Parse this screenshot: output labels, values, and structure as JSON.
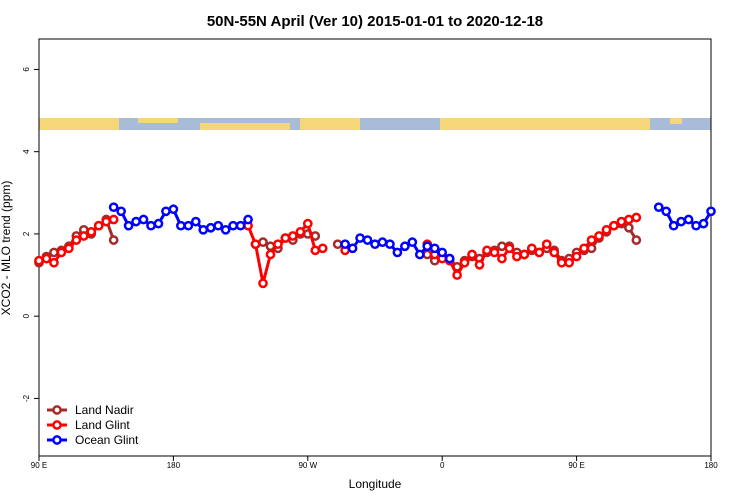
{
  "chart_data": {
    "type": "line",
    "title": "50N-55N April (Ver 10)   2015-01-01 to 2020-12-18",
    "x_label": "Longitude",
    "y_label": "XCO2 - MLO trend (ppm)",
    "xlim": [
      90,
      540
    ],
    "ylim": [
      -3.4,
      6.74
    ],
    "xticks": [
      90,
      180,
      {
        "value": 270,
        "label": "90 W"
      },
      {
        "value": 360,
        "label": "0"
      },
      {
        "value": 450,
        "label": "90 E"
      },
      {
        "value": 540,
        "label": "180"
      }
    ],
    "xtick_first_label": "90 E",
    "yticks": [
      -2,
      0,
      2,
      4,
      6
    ],
    "legend": "bottomleft",
    "series": [
      {
        "name": "Land Nadir",
        "color": "#a52a2a",
        "x": [
          90,
          95,
          100,
          105,
          110,
          115,
          120,
          125,
          130,
          135,
          140,
          185,
          235,
          240,
          245,
          250,
          255,
          260,
          265,
          270,
          275,
          282,
          290,
          300,
          350,
          355,
          360,
          365,
          370,
          375,
          380,
          385,
          390,
          395,
          400,
          405,
          410,
          415,
          420,
          425,
          430,
          435,
          440,
          445,
          450,
          455,
          460,
          465,
          470,
          475,
          480,
          485,
          490
        ],
        "values": [
          1.3,
          1.45,
          1.55,
          1.6,
          1.7,
          1.95,
          2.1,
          2.0,
          2.2,
          2.35,
          1.85,
          null,
          1.75,
          1.8,
          1.7,
          1.65,
          1.9,
          1.85,
          2.0,
          2.0,
          1.95,
          null,
          1.75,
          null,
          1.5,
          1.35,
          1.45,
          1.4,
          1.2,
          1.35,
          1.45,
          1.4,
          1.55,
          1.6,
          1.7,
          1.7,
          1.55,
          1.5,
          1.6,
          1.55,
          1.65,
          1.6,
          1.35,
          1.4,
          1.55,
          1.6,
          1.65,
          1.9,
          2.05,
          2.2,
          2.25,
          2.15,
          1.85
        ]
      },
      {
        "name": "Land Glint",
        "color": "#ff0000",
        "x": [
          90,
          95,
          100,
          105,
          110,
          115,
          120,
          125,
          130,
          135,
          140,
          185,
          230,
          235,
          240,
          245,
          250,
          255,
          260,
          265,
          270,
          275,
          280,
          285,
          295,
          300,
          350,
          355,
          360,
          365,
          370,
          375,
          380,
          385,
          390,
          395,
          400,
          405,
          410,
          415,
          420,
          425,
          430,
          435,
          440,
          445,
          450,
          455,
          460,
          465,
          470,
          475,
          480,
          485,
          490
        ],
        "values": [
          1.35,
          1.4,
          1.3,
          1.55,
          1.65,
          1.85,
          1.95,
          2.05,
          2.2,
          2.3,
          2.35,
          null,
          2.2,
          1.75,
          0.8,
          1.5,
          1.75,
          1.9,
          1.95,
          2.05,
          2.25,
          1.6,
          1.65,
          null,
          1.6,
          null,
          1.75,
          1.5,
          1.4,
          1.35,
          1.0,
          1.3,
          1.5,
          1.25,
          1.6,
          1.55,
          1.4,
          1.65,
          1.45,
          1.5,
          1.65,
          1.55,
          1.75,
          1.55,
          1.3,
          1.3,
          1.45,
          1.65,
          1.85,
          1.95,
          2.1,
          2.2,
          2.3,
          2.35,
          2.4
        ]
      },
      {
        "name": "Ocean Glint",
        "color": "#0000ff",
        "x": [
          140,
          145,
          150,
          155,
          160,
          165,
          170,
          175,
          180,
          185,
          190,
          195,
          200,
          205,
          210,
          215,
          220,
          225,
          230,
          262,
          295,
          300,
          305,
          310,
          315,
          320,
          325,
          330,
          335,
          340,
          345,
          350,
          355,
          360,
          365,
          440,
          505,
          510,
          515,
          520,
          525,
          530,
          535,
          540
        ],
        "values": [
          2.65,
          2.55,
          2.2,
          2.3,
          2.35,
          2.2,
          2.25,
          2.55,
          2.6,
          2.2,
          2.2,
          2.3,
          2.1,
          2.15,
          2.2,
          2.1,
          2.2,
          2.2,
          2.35,
          null,
          1.75,
          1.65,
          1.9,
          1.85,
          1.75,
          1.8,
          1.75,
          1.55,
          1.7,
          1.8,
          1.5,
          1.7,
          1.65,
          1.55,
          1.4,
          null,
          2.65,
          2.55,
          2.2,
          2.3,
          2.35,
          2.2,
          2.25,
          2.55
        ]
      }
    ]
  }
}
